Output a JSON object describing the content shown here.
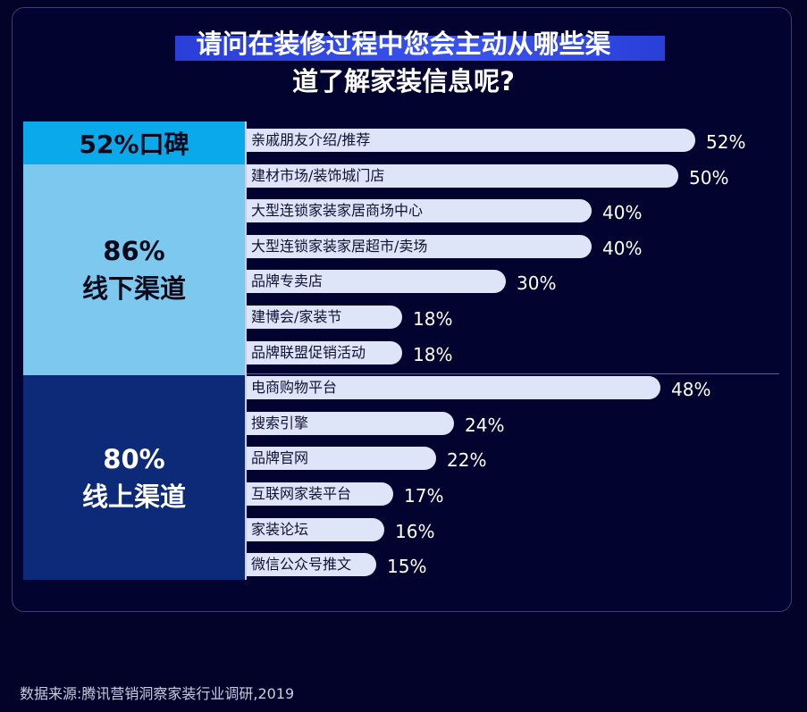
{
  "title": {
    "line1": "请问在装修过程中您会主动从哪些渠",
    "line2": "道了解家装信息呢?"
  },
  "groups": {
    "word_of_mouth": {
      "label": "52%口碑"
    },
    "offline": {
      "pct": "86%",
      "label": "线下渠道"
    },
    "online": {
      "pct": "80%",
      "label": "线上渠道"
    }
  },
  "chart_data": {
    "type": "bar",
    "orientation": "horizontal",
    "unit": "%",
    "categories": [
      "亲戚朋友介绍/推荐",
      "建材市场/装饰城门店",
      "大型连锁家装家居商场中心",
      "大型连锁家装家居超市/卖场",
      "品牌专卖店",
      "建博会/家装节",
      "品牌联盟促销活动",
      "电商购物平台",
      "搜索引擎",
      "品牌官网",
      "互联网家装平台",
      "家装论坛",
      "微信公众号推文"
    ],
    "values": [
      52,
      50,
      40,
      40,
      30,
      18,
      18,
      48,
      24,
      22,
      17,
      16,
      15
    ],
    "value_labels": [
      "52%",
      "50%",
      "40%",
      "40%",
      "30%",
      "18%",
      "18%",
      "48%",
      "24%",
      "22%",
      "17%",
      "16%",
      "15%"
    ],
    "xlim": [
      0,
      52
    ],
    "grid": false,
    "legend": "none"
  },
  "colors": {
    "background": "#03032a",
    "bar": "#dfe5f8",
    "word_of_mouth_panel": "#0aa9ea",
    "offline_panel": "#7cc8ee",
    "online_panel": "#0d2a78",
    "title_highlight": "#3a52ee"
  },
  "source": "数据来源:腾讯营销洞察家装行业调研,2019"
}
